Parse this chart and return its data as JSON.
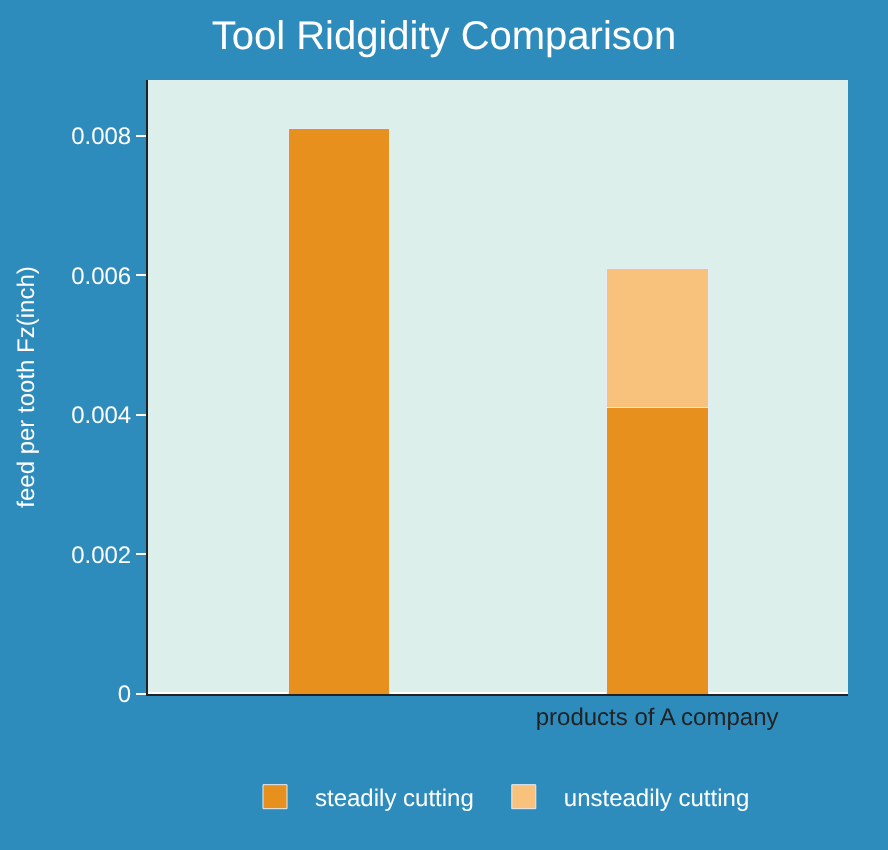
{
  "chart_data": {
    "type": "bar",
    "title": "Tool Ridgidity Comparison",
    "ylabel": "feed per tooth Fz(inch)",
    "categories": [
      null,
      "products of A company"
    ],
    "stacked": true,
    "series": [
      {
        "name": "steadily cutting",
        "color": "#e8901e",
        "values": [
          0.0081,
          0.0041
        ]
      },
      {
        "name": "unsteadily cutting",
        "color": "#f8c27c",
        "values": [
          null,
          0.002
        ]
      }
    ],
    "ylim": [
      0,
      0.0088
    ],
    "yticks": [
      0,
      0.002,
      0.004,
      0.006,
      0.008
    ],
    "grid": false,
    "legend": "bottom"
  }
}
